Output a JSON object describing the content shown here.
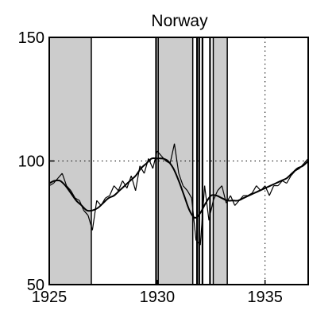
{
  "chart_data": {
    "type": "line",
    "title": "Norway",
    "xlabel": "",
    "ylabel": "",
    "xlim": [
      1925,
      1937
    ],
    "ylim": [
      50,
      150
    ],
    "xticks": [
      1925,
      1930,
      1935
    ],
    "yticks": [
      50,
      100,
      150
    ],
    "xtick_labels": [
      "1925",
      "1930",
      "1935"
    ],
    "ytick_labels": [
      "50",
      "100",
      "150"
    ],
    "reference_lines": {
      "x": 1935,
      "y": 100,
      "style": "dotted"
    },
    "shaded_periods": [
      [
        1925.0,
        1926.95
      ],
      [
        1930.05,
        1931.65
      ],
      [
        1932.6,
        1933.25
      ]
    ],
    "vertical_lines": [
      1929.95,
      1931.85,
      1931.95,
      1932.1,
      1932.45
    ],
    "series": [
      {
        "style": "smooth",
        "x": [
          1925.0,
          1925.25,
          1925.5,
          1925.75,
          1926.0,
          1926.25,
          1926.5,
          1926.75,
          1927.0,
          1927.25,
          1927.5,
          1927.75,
          1928.0,
          1928.25,
          1928.5,
          1928.75,
          1929.0,
          1929.25,
          1929.5,
          1929.75,
          1930.0,
          1930.25,
          1930.5,
          1930.75,
          1931.0,
          1931.25,
          1931.5,
          1931.75,
          1932.0,
          1932.25,
          1932.5,
          1932.75,
          1933.0,
          1933.25,
          1933.5,
          1933.75,
          1934.0,
          1934.25,
          1934.5,
          1934.75,
          1935.0,
          1935.25,
          1935.5,
          1935.75,
          1936.0,
          1936.25,
          1936.5,
          1936.75,
          1937.0
        ],
        "y": [
          91,
          92,
          92,
          90,
          87,
          84,
          82,
          80,
          80,
          81,
          83,
          85,
          86,
          88,
          90,
          92,
          94,
          97,
          99,
          101,
          101,
          101,
          100,
          97,
          92,
          86,
          80,
          77,
          79,
          83,
          86,
          86,
          85,
          84,
          84,
          84,
          85,
          86,
          87,
          88,
          89,
          90,
          91,
          92,
          93,
          95,
          97,
          98,
          100
        ]
      },
      {
        "style": "segments",
        "x": [
          1925.0,
          1925.2,
          1925.4,
          1925.6,
          1925.8,
          1926.0,
          1926.2,
          1926.4,
          1926.6,
          1926.8,
          1927.0,
          1927.2,
          1927.4,
          1927.6,
          1927.8,
          1928.0,
          1928.2,
          1928.4,
          1928.6,
          1928.8,
          1929.0,
          1929.2,
          1929.4,
          1929.6,
          1929.8,
          1930.0,
          1930.2,
          1930.4,
          1930.6,
          1930.8,
          1931.0,
          1931.2,
          1931.4,
          1931.6,
          1931.8,
          1932.0,
          1932.2,
          1932.4,
          1932.6,
          1932.8,
          1933.0,
          1933.2,
          1933.4,
          1933.6,
          1933.8,
          1934.0,
          1934.2,
          1934.4,
          1934.6,
          1934.8,
          1935.0,
          1935.2,
          1935.4,
          1935.6,
          1935.8,
          1936.0,
          1936.2,
          1936.4,
          1936.6,
          1936.8,
          1937.0
        ],
        "y": [
          90,
          91,
          93,
          95,
          90,
          88,
          85,
          84,
          80,
          78,
          72,
          84,
          82,
          85,
          86,
          90,
          88,
          92,
          89,
          94,
          88,
          98,
          95,
          101,
          97,
          104,
          102,
          100,
          99,
          107,
          95,
          90,
          88,
          85,
          68,
          66,
          90,
          76,
          84,
          88,
          90,
          83,
          86,
          82,
          84,
          86,
          86,
          87,
          90,
          88,
          90,
          86,
          90,
          90,
          92,
          91,
          94,
          96,
          97,
          99,
          101
        ]
      }
    ]
  }
}
